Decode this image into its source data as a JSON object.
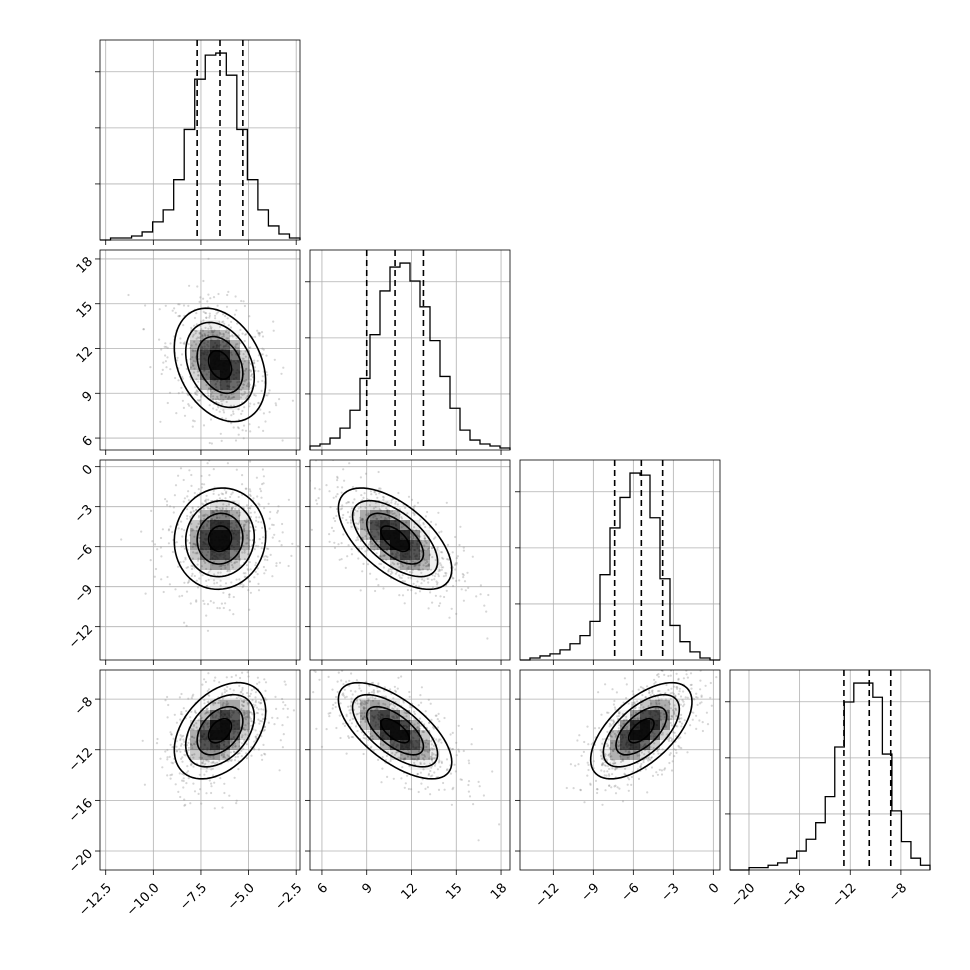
{
  "chart_data": {
    "type": "corner",
    "grid": true,
    "colors": {
      "ink": "#000000",
      "grid": "#b0b0b0",
      "points": "#8a8a8a"
    },
    "parameters": [
      {
        "mean": -6.5,
        "std": 1.2,
        "quantiles": [
          -7.7,
          -6.5,
          -5.3
        ],
        "range": [
          -12.8,
          -2.3
        ],
        "ticks": [
          -12.5,
          -10.0,
          -7.5,
          -5.0,
          -2.5
        ],
        "tick_labels": [
          "−12.5",
          "−10.0",
          "−7.5",
          "−5.0",
          "−2.5"
        ],
        "hist_counts": [
          0,
          1,
          1,
          2,
          4,
          9,
          15,
          30,
          55,
          80,
          92,
          93,
          82,
          55,
          30,
          15,
          7,
          3,
          1
        ]
      },
      {
        "mean": 10.9,
        "std": 1.9,
        "quantiles": [
          9.0,
          10.9,
          12.8
        ],
        "range": [
          5.2,
          18.6
        ],
        "ticks": [
          6,
          9,
          12,
          15,
          18
        ],
        "tick_labels": [
          "6",
          "9",
          "12",
          "15",
          "18"
        ],
        "hist_counts": [
          2,
          3,
          6,
          11,
          20,
          36,
          58,
          80,
          92,
          94,
          85,
          72,
          55,
          37,
          21,
          10,
          5,
          3,
          2,
          1
        ]
      },
      {
        "mean": -5.4,
        "std": 1.9,
        "quantiles": [
          -7.4,
          -5.4,
          -3.8
        ],
        "range": [
          -14.5,
          0.5
        ],
        "ticks": [
          -12,
          -9,
          -6,
          -3,
          0
        ],
        "tick_labels": [
          "−12",
          "−9",
          "−6",
          "−3",
          "0"
        ],
        "y_ticks": [
          0,
          -3,
          -6,
          -9,
          -12
        ],
        "y_tick_labels": [
          "0",
          "−3",
          "−6",
          "−9",
          "−12"
        ],
        "hist_counts": [
          0,
          1,
          2,
          3,
          5,
          8,
          12,
          19,
          42,
          65,
          80,
          92,
          91,
          70,
          40,
          17,
          9,
          4,
          1,
          0
        ]
      },
      {
        "mean": -10.5,
        "std": 1.9,
        "quantiles": [
          -12.5,
          -10.5,
          -8.8
        ],
        "range": [
          -21.5,
          -5.7
        ],
        "ticks": [
          -20,
          -16,
          -12,
          -8
        ],
        "tick_labels": [
          "−20",
          "−16",
          "−12",
          "−8"
        ],
        "y_ticks": [
          -8,
          -12,
          -16,
          -20
        ],
        "y_tick_labels": [
          "−8",
          "−12",
          "−16",
          "−20"
        ],
        "hist_counts": [
          0,
          0,
          1,
          1,
          2,
          3,
          5,
          8,
          13,
          20,
          31,
          52,
          71,
          79,
          79,
          73,
          49,
          25,
          12,
          5,
          2
        ]
      }
    ],
    "y_axis_rows": [
      {
        "param": 1,
        "ticks": [
          6,
          9,
          12,
          15,
          18
        ],
        "tick_labels": [
          "6",
          "9",
          "12",
          "15",
          "18"
        ]
      },
      {
        "param": 2,
        "ticks": [
          0,
          -3,
          -6,
          -9,
          -12
        ],
        "tick_labels": [
          "0",
          "−3",
          "−6",
          "−9",
          "−12"
        ]
      },
      {
        "param": 3,
        "ticks": [
          -8,
          -12,
          -16,
          -20
        ],
        "tick_labels": [
          "−8",
          "−12",
          "−16",
          "−20"
        ]
      }
    ],
    "correlations": {
      "1-0": -0.3,
      "2-0": 0.05,
      "2-1": -0.6,
      "3-0": 0.4,
      "3-1": -0.65,
      "3-2": 0.6
    },
    "contour_levels": [
      0.5,
      1.0,
      1.5,
      2.0
    ]
  }
}
